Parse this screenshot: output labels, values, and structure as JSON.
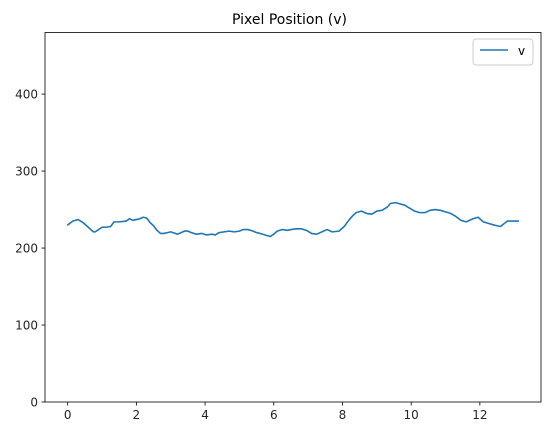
{
  "chart_data": {
    "type": "line",
    "title": "Pixel Position (v)",
    "xlabel": "",
    "ylabel": "",
    "xlim": [
      -0.66,
      13.78
    ],
    "ylim": [
      0,
      480
    ],
    "xticks": [
      0,
      2,
      4,
      6,
      8,
      10,
      12
    ],
    "yticks": [
      0,
      100,
      200,
      300,
      400
    ],
    "grid": false,
    "legend_position": "top-right",
    "series": [
      {
        "name": "v",
        "color": "#1f77b4",
        "x": [
          0.0,
          0.15,
          0.3,
          0.45,
          0.6,
          0.75,
          0.8,
          0.9,
          1.0,
          1.1,
          1.25,
          1.35,
          1.5,
          1.7,
          1.8,
          1.9,
          2.0,
          2.1,
          2.2,
          2.3,
          2.4,
          2.5,
          2.6,
          2.7,
          2.8,
          3.0,
          3.2,
          3.4,
          3.5,
          3.6,
          3.75,
          3.9,
          4.05,
          4.2,
          4.3,
          4.4,
          4.55,
          4.7,
          4.85,
          5.0,
          5.1,
          5.25,
          5.4,
          5.5,
          5.6,
          5.75,
          5.9,
          6.0,
          6.1,
          6.25,
          6.4,
          6.5,
          6.65,
          6.8,
          6.95,
          7.1,
          7.25,
          7.4,
          7.55,
          7.7,
          7.9,
          8.05,
          8.2,
          8.3,
          8.4,
          8.55,
          8.7,
          8.85,
          9.0,
          9.15,
          9.3,
          9.4,
          9.55,
          9.7,
          9.8,
          9.95,
          10.1,
          10.25,
          10.4,
          10.55,
          10.7,
          10.85,
          11.0,
          11.15,
          11.3,
          11.45,
          11.6,
          11.8,
          11.95,
          12.1,
          12.25,
          12.4,
          12.5,
          12.6,
          12.8,
          13.0,
          13.12
        ],
        "y": [
          230,
          235,
          237,
          233,
          227,
          221,
          221,
          224,
          227,
          227,
          228,
          234,
          234,
          235,
          238,
          236,
          237,
          238,
          240,
          239,
          233,
          229,
          223,
          219,
          219,
          221,
          218,
          222,
          222,
          220,
          218,
          219,
          217,
          218,
          217,
          220,
          221,
          222,
          221,
          222,
          224,
          224,
          222,
          220,
          219,
          217,
          215,
          218,
          222,
          224,
          223,
          224,
          225,
          225,
          223,
          219,
          218,
          221,
          224,
          221,
          222,
          228,
          237,
          242,
          246,
          248,
          245,
          244,
          248,
          249,
          253,
          258,
          259,
          257,
          256,
          252,
          248,
          246,
          246,
          249,
          250,
          249,
          247,
          245,
          241,
          236,
          234,
          238,
          240,
          234,
          232,
          230,
          229,
          228,
          235,
          235,
          235
        ]
      }
    ]
  }
}
